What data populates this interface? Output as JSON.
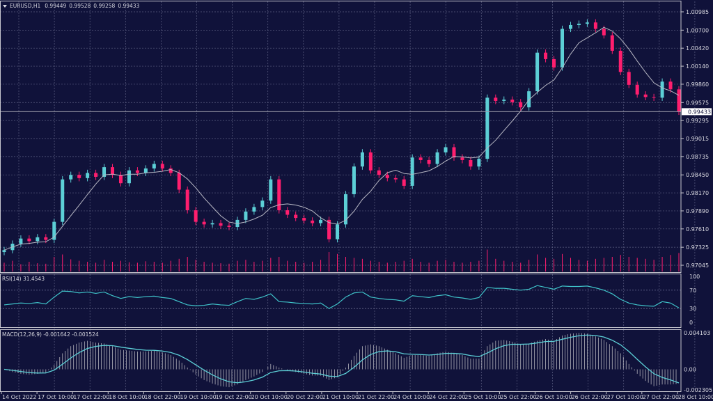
{
  "header": {
    "symbol": "EURUSD,H1",
    "open": "0.99449",
    "high": "0.99528",
    "low": "0.99258",
    "close": "0.99433"
  },
  "rsi_header": "RSI(14) 31.4543",
  "macd_header": "MACD(12,26,9) -0.001642 -0.001524",
  "current_price_label": "0.99433",
  "colors": {
    "background": "#10123a",
    "bull": "#5ccfd6",
    "bear": "#ff1e6e",
    "ma": "#b8b8c4",
    "rsi": "#3fc3c9",
    "macd_hist": "#b4b4bc",
    "macd_signal": "#5ccfd6",
    "grid": "#5a5d80"
  },
  "chart_data": {
    "type": "candlestick",
    "price_axis": {
      "ticks": [
        "1.00985",
        "1.00700",
        "1.00420",
        "1.00140",
        "0.99860",
        "0.99575",
        "0.99295",
        "0.99015",
        "0.98735",
        "0.98450",
        "0.98170",
        "0.97890",
        "0.97610",
        "0.97325",
        "0.97045"
      ],
      "ylim": [
        0.97045,
        1.00985
      ]
    },
    "time_axis": {
      "ticks": [
        "14 Oct 2022",
        "17 Oct 10:00",
        "17 Oct 22:00",
        "18 Oct 10:00",
        "18 Oct 22:00",
        "19 Oct 10:00",
        "19 Oct 22:00",
        "20 Oct 10:00",
        "20 Oct 22:00",
        "21 Oct 10:00",
        "21 Oct 22:00",
        "24 Oct 10:00",
        "24 Oct 22:00",
        "25 Oct 10:00",
        "25 Oct 22:00",
        "26 Oct 10:00",
        "26 Oct 22:00",
        "27 Oct 10:00",
        "27 Oct 22:00",
        "28 Oct 10:00"
      ]
    },
    "first_open": 0.9725,
    "closes": [
      0.9728,
      0.9738,
      0.9746,
      0.9742,
      0.9748,
      0.9744,
      0.9772,
      0.9838,
      0.9845,
      0.984,
      0.9848,
      0.9842,
      0.9857,
      0.9845,
      0.9832,
      0.9852,
      0.9848,
      0.9855,
      0.9862,
      0.9855,
      0.9848,
      0.9822,
      0.979,
      0.9772,
      0.9768,
      0.977,
      0.9766,
      0.9764,
      0.9775,
      0.9788,
      0.9795,
      0.9805,
      0.9838,
      0.979,
      0.9783,
      0.9778,
      0.9774,
      0.977,
      0.9775,
      0.9745,
      0.9768,
      0.9815,
      0.9858,
      0.988,
      0.9852,
      0.9845,
      0.984,
      0.9838,
      0.9828,
      0.9872,
      0.9868,
      0.9862,
      0.988,
      0.9888,
      0.9872,
      0.9868,
      0.9858,
      0.987,
      0.9965,
      0.996,
      0.9962,
      0.9958,
      0.995,
      0.9975,
      1.0035,
      1.0025,
      1.0012,
      1.0072,
      1.0078,
      1.008,
      1.0082,
      1.0072,
      1.0062,
      1.0038,
      1.0005,
      0.9985,
      0.997,
      0.9966,
      0.9965,
      0.999,
      0.9978,
      0.99433
    ],
    "volume": [
      18,
      22,
      15,
      20,
      17,
      16,
      30,
      35,
      25,
      22,
      20,
      18,
      24,
      20,
      22,
      19,
      18,
      21,
      20,
      18,
      22,
      26,
      30,
      24,
      20,
      18,
      17,
      16,
      22,
      24,
      20,
      22,
      28,
      30,
      22,
      20,
      18,
      20,
      24,
      40,
      36,
      30,
      28,
      26,
      22,
      20,
      18,
      20,
      22,
      26,
      20,
      18,
      22,
      24,
      20,
      18,
      20,
      22,
      45,
      26,
      22,
      20,
      18,
      24,
      35,
      28,
      26,
      36,
      28,
      24,
      22,
      26,
      28,
      30,
      34,
      30,
      28,
      26,
      24,
      30,
      34,
      38
    ],
    "current_price": 0.99433,
    "rsi": {
      "period": 14,
      "levels": [
        70,
        30
      ],
      "axis": [
        "100",
        "70",
        "30",
        "0"
      ],
      "values": [
        38,
        40,
        42,
        41,
        43,
        40,
        55,
        68,
        67,
        64,
        66,
        63,
        66,
        58,
        52,
        56,
        54,
        56,
        57,
        54,
        52,
        45,
        38,
        36,
        37,
        40,
        38,
        37,
        45,
        52,
        50,
        55,
        62,
        45,
        44,
        42,
        41,
        40,
        42,
        30,
        40,
        55,
        64,
        66,
        55,
        52,
        50,
        49,
        46,
        58,
        56,
        54,
        58,
        60,
        55,
        53,
        50,
        54,
        76,
        74,
        74,
        72,
        70,
        72,
        80,
        76,
        72,
        79,
        78,
        78,
        79,
        75,
        70,
        62,
        50,
        42,
        38,
        36,
        35,
        45,
        42,
        31.4543
      ]
    },
    "macd": {
      "params": "12,26,9",
      "axis": [
        "0.004103",
        "0.00",
        "-0.002305"
      ],
      "ylim": [
        -0.002305,
        0.004103
      ],
      "values": [
        0.0,
        -0.0003,
        -0.0005,
        -0.0006,
        -0.0005,
        -0.0004,
        0.0005,
        0.0018,
        0.0026,
        0.003,
        0.0032,
        0.003,
        0.0029,
        0.0026,
        0.0022,
        0.0021,
        0.002,
        0.002,
        0.0021,
        0.0019,
        0.0016,
        0.001,
        0.0002,
        -0.0006,
        -0.0012,
        -0.0016,
        -0.0019,
        -0.002,
        -0.0017,
        -0.0012,
        -0.0008,
        -0.0003,
        0.0006,
        0.0002,
        -0.0001,
        -0.0003,
        -0.0005,
        -0.0007,
        -0.0007,
        -0.0012,
        -0.0009,
        0.0002,
        0.0015,
        0.0026,
        0.0028,
        0.0026,
        0.0022,
        0.0018,
        0.0013,
        0.0016,
        0.0016,
        0.0015,
        0.0018,
        0.002,
        0.0018,
        0.0016,
        0.0012,
        0.0012,
        0.0026,
        0.0032,
        0.0033,
        0.0031,
        0.0028,
        0.0029,
        0.0032,
        0.0034,
        0.0032,
        0.0038,
        0.004,
        0.0041,
        0.004,
        0.0037,
        0.0033,
        0.0026,
        0.0018,
        0.0006,
        -0.0005,
        -0.0013,
        -0.0019,
        -0.0017,
        -0.0017,
        -0.001642
      ],
      "signal_last": -0.001524
    }
  }
}
